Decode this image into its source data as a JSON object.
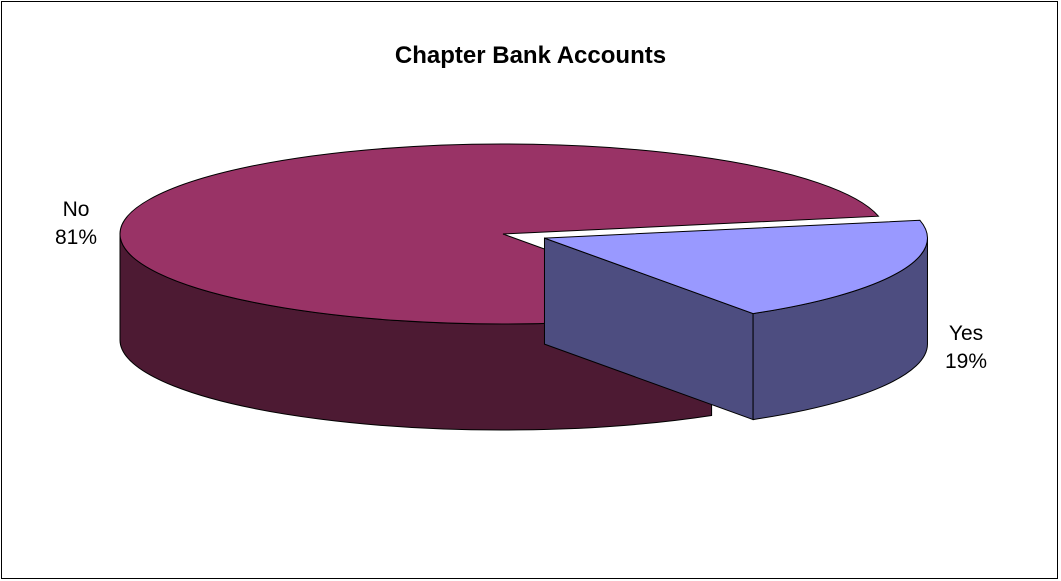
{
  "chart_data": {
    "type": "pie",
    "title": "Chapter Bank Accounts",
    "slices": [
      {
        "label": "No",
        "value": 81,
        "value_label": "81%",
        "color": "#993366",
        "side_color": "#4d1a33",
        "exploded": false
      },
      {
        "label": "Yes",
        "value": 19,
        "value_label": "19%",
        "color": "#9999ff",
        "side_color": "#4d4d80",
        "exploded": true
      }
    ],
    "style": "3d-exploded",
    "legend": "none"
  }
}
